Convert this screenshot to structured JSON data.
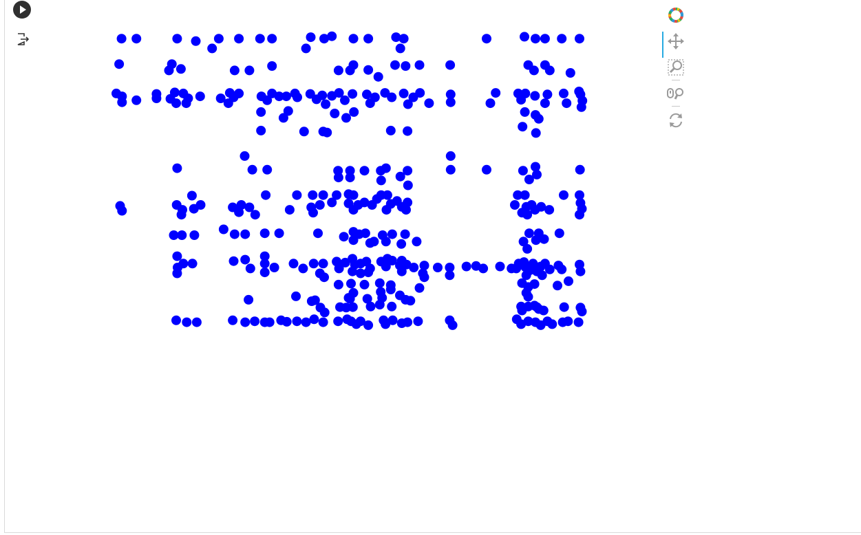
{
  "notebook": {
    "run_icon": "play-icon",
    "output_icon": "output-export-icon"
  },
  "toolbar": {
    "logo_icon": "bokeh-logo-icon",
    "tools": [
      {
        "name": "pan-tool",
        "icon": "move-arrows-icon",
        "active": true
      },
      {
        "name": "box-zoom-tool",
        "icon": "box-zoom-icon",
        "active": false
      },
      {
        "name": "wheel-zoom-tool",
        "icon": "wheel-zoom-icon",
        "active": false
      },
      {
        "name": "reset-tool",
        "icon": "reset-icon",
        "active": false
      }
    ]
  },
  "colors": {
    "marker": "#0000ff",
    "accent": "#26aae1",
    "run_button": "#303030"
  },
  "chart_data": {
    "type": "scatter",
    "title": "",
    "xlabel": "",
    "ylabel": "",
    "axes_visible": false,
    "grid": false,
    "marker": "circle",
    "color": "#0000ff",
    "xlim": [
      0,
      100
    ],
    "ylim": [
      0,
      100
    ],
    "points": [
      [
        2.1,
        98
      ],
      [
        5.2,
        98
      ],
      [
        13.7,
        98
      ],
      [
        17.6,
        97.5
      ],
      [
        22.4,
        98
      ],
      [
        21.0,
        96
      ],
      [
        26.6,
        98
      ],
      [
        31.0,
        98
      ],
      [
        33.5,
        98
      ],
      [
        41.6,
        98.3
      ],
      [
        44.4,
        98
      ],
      [
        40.6,
        96
      ],
      [
        46.0,
        98.5
      ],
      [
        50.5,
        98
      ],
      [
        53.6,
        98
      ],
      [
        59.4,
        98.3
      ],
      [
        61.0,
        98
      ],
      [
        60.3,
        96
      ],
      [
        78.3,
        98
      ],
      [
        86.2,
        98.4
      ],
      [
        88.5,
        98
      ],
      [
        90.5,
        98
      ],
      [
        94.0,
        98
      ],
      [
        97.7,
        98
      ],
      [
        1.6,
        92.8
      ],
      [
        12.6,
        92.8
      ],
      [
        12.0,
        91.5
      ],
      [
        14.5,
        91.8
      ],
      [
        25.7,
        91.5
      ],
      [
        28.8,
        91.5
      ],
      [
        33.5,
        92.4
      ],
      [
        47.4,
        91.5
      ],
      [
        49.8,
        91.5
      ],
      [
        50.5,
        92.6
      ],
      [
        53.6,
        91.6
      ],
      [
        55.7,
        90.2
      ],
      [
        59.2,
        92.6
      ],
      [
        61.4,
        92.4
      ],
      [
        64.3,
        92.6
      ],
      [
        70.7,
        92.6
      ],
      [
        87.0,
        92.6
      ],
      [
        88.2,
        91.5
      ],
      [
        90.5,
        92.6
      ],
      [
        91.5,
        91.5
      ],
      [
        95.8,
        91.0
      ],
      [
        1.0,
        86.8
      ],
      [
        2.2,
        86.2
      ],
      [
        2.2,
        85.0
      ],
      [
        5.2,
        85.4
      ],
      [
        9.4,
        86.7
      ],
      [
        9.4,
        85.8
      ],
      [
        12.3,
        85.7
      ],
      [
        13.2,
        87.0
      ],
      [
        13.5,
        84.8
      ],
      [
        15.0,
        86.8
      ],
      [
        16.0,
        85.8
      ],
      [
        15.6,
        84.8
      ],
      [
        18.5,
        86.2
      ],
      [
        22.8,
        85.8
      ],
      [
        24.7,
        86.9
      ],
      [
        26.6,
        86.8
      ],
      [
        25.5,
        86.0
      ],
      [
        24.4,
        84.8
      ],
      [
        31.3,
        86.2
      ],
      [
        32.5,
        85.4
      ],
      [
        33.5,
        86.8
      ],
      [
        35.0,
        86.2
      ],
      [
        36.5,
        86.2
      ],
      [
        38.3,
        86.8
      ],
      [
        38.8,
        86.0
      ],
      [
        41.5,
        86.7
      ],
      [
        42.8,
        85.6
      ],
      [
        44.0,
        86.4
      ],
      [
        46.0,
        86.3
      ],
      [
        44.7,
        84.6
      ],
      [
        47.5,
        86.9
      ],
      [
        48.7,
        85.4
      ],
      [
        50.3,
        86.7
      ],
      [
        53.3,
        86.6
      ],
      [
        55.0,
        86.0
      ],
      [
        54.0,
        84.8
      ],
      [
        57.1,
        86.9
      ],
      [
        58.5,
        86.0
      ],
      [
        61.0,
        86.8
      ],
      [
        63.0,
        86.0
      ],
      [
        61.9,
        84.6
      ],
      [
        64.4,
        86.9
      ],
      [
        66.3,
        84.8
      ],
      [
        70.8,
        86.6
      ],
      [
        70.8,
        85.0
      ],
      [
        80.2,
        86.9
      ],
      [
        79.1,
        84.8
      ],
      [
        84.9,
        86.8
      ],
      [
        86.4,
        86.8
      ],
      [
        85.5,
        85.5
      ],
      [
        88.4,
        86.3
      ],
      [
        91.0,
        86.6
      ],
      [
        90.5,
        84.8
      ],
      [
        94.4,
        86.8
      ],
      [
        95.0,
        84.8
      ],
      [
        97.9,
        86.6
      ],
      [
        98.3,
        85.3
      ],
      [
        98.1,
        84.0
      ],
      [
        97.6,
        87.2
      ],
      [
        31.2,
        83.0
      ],
      [
        35.9,
        81.8
      ],
      [
        36.9,
        83.2
      ],
      [
        46.6,
        82.7
      ],
      [
        49.0,
        81.8
      ],
      [
        50.6,
        83.0
      ],
      [
        86.3,
        83.0
      ],
      [
        88.5,
        82.4
      ],
      [
        89.2,
        81.6
      ],
      [
        85.8,
        80.0
      ],
      [
        31.2,
        79.2
      ],
      [
        40.2,
        79.0
      ],
      [
        44.2,
        79.0
      ],
      [
        45.0,
        78.8
      ],
      [
        58.3,
        79.2
      ],
      [
        61.8,
        79.1
      ],
      [
        88.6,
        78.7
      ],
      [
        13.7,
        71.5
      ],
      [
        27.8,
        74.0
      ],
      [
        29.4,
        71.2
      ],
      [
        32.5,
        71.2
      ],
      [
        47.3,
        71.0
      ],
      [
        49.8,
        71.0
      ],
      [
        47.4,
        69.6
      ],
      [
        49.8,
        69.6
      ],
      [
        52.8,
        71.0
      ],
      [
        56.2,
        71.0
      ],
      [
        57.3,
        71.5
      ],
      [
        56.3,
        69.0
      ],
      [
        60.3,
        69.8
      ],
      [
        61.8,
        71.0
      ],
      [
        61.9,
        68.0
      ],
      [
        70.8,
        74.0
      ],
      [
        70.8,
        71.2
      ],
      [
        78.3,
        71.2
      ],
      [
        85.9,
        71.0
      ],
      [
        88.5,
        71.8
      ],
      [
        87.2,
        69.2
      ],
      [
        88.8,
        70.2
      ],
      [
        97.8,
        71.2
      ],
      [
        1.8,
        63.8
      ],
      [
        2.2,
        62.8
      ],
      [
        13.6,
        64.0
      ],
      [
        16.8,
        65.9
      ],
      [
        18.6,
        64.0
      ],
      [
        17.2,
        63.2
      ],
      [
        14.8,
        63.0
      ],
      [
        14.6,
        62.0
      ],
      [
        25.3,
        63.5
      ],
      [
        27.1,
        64.0
      ],
      [
        28.8,
        63.5
      ],
      [
        30.0,
        62.0
      ],
      [
        32.2,
        66.0
      ],
      [
        26.6,
        62.5
      ],
      [
        37.2,
        63.0
      ],
      [
        38.7,
        66.0
      ],
      [
        42.0,
        66.0
      ],
      [
        41.7,
        63.5
      ],
      [
        42.1,
        62.4
      ],
      [
        44.2,
        66.0
      ],
      [
        43.5,
        64.0
      ],
      [
        46.0,
        64.5
      ],
      [
        47.0,
        66.0
      ],
      [
        49.5,
        66.2
      ],
      [
        50.5,
        66.0
      ],
      [
        49.5,
        64.3
      ],
      [
        50.5,
        63.0
      ],
      [
        51.5,
        64.0
      ],
      [
        52.8,
        64.5
      ],
      [
        54.4,
        64.0
      ],
      [
        55.4,
        65.2
      ],
      [
        56.3,
        66.0
      ],
      [
        57.6,
        66.0
      ],
      [
        57.4,
        63.0
      ],
      [
        58.3,
        64.2
      ],
      [
        59.6,
        64.8
      ],
      [
        60.6,
        63.6
      ],
      [
        61.5,
        63.0
      ],
      [
        61.8,
        64.5
      ],
      [
        84.8,
        66.0
      ],
      [
        86.3,
        66.0
      ],
      [
        84.2,
        64.0
      ],
      [
        85.7,
        62.4
      ],
      [
        86.6,
        63.6
      ],
      [
        87.7,
        64.0
      ],
      [
        88.4,
        63.0
      ],
      [
        86.8,
        62.0
      ],
      [
        89.7,
        63.6
      ],
      [
        91.4,
        63.0
      ],
      [
        94.4,
        66.0
      ],
      [
        97.7,
        66.0
      ],
      [
        97.9,
        64.4
      ],
      [
        98.2,
        63.2
      ],
      [
        97.7,
        62.0
      ],
      [
        13.0,
        57.8
      ],
      [
        14.7,
        57.8
      ],
      [
        17.3,
        57.8
      ],
      [
        23.4,
        59.0
      ],
      [
        25.7,
        58.0
      ],
      [
        27.9,
        58.0
      ],
      [
        32.0,
        58.2
      ],
      [
        35.0,
        58.2
      ],
      [
        43.1,
        58.2
      ],
      [
        48.5,
        57.5
      ],
      [
        50.5,
        58.5
      ],
      [
        51.7,
        58.0
      ],
      [
        54.8,
        56.5
      ],
      [
        56.6,
        57.8
      ],
      [
        58.6,
        58.0
      ],
      [
        61.3,
        58.0
      ],
      [
        63.7,
        56.5
      ],
      [
        57.3,
        56.5
      ],
      [
        54.0,
        56.2
      ],
      [
        50.5,
        56.8
      ],
      [
        53.0,
        58.2
      ],
      [
        60.5,
        56.0
      ],
      [
        88.6,
        56.8
      ],
      [
        90.3,
        57.0
      ],
      [
        87.2,
        58.2
      ],
      [
        89.2,
        58.2
      ],
      [
        93.5,
        58.2
      ],
      [
        86.8,
        55.0
      ],
      [
        86.0,
        56.5
      ],
      [
        13.7,
        53.5
      ],
      [
        15.0,
        52.0
      ],
      [
        13.8,
        51.2
      ],
      [
        16.9,
        52.0
      ],
      [
        13.7,
        50.0
      ],
      [
        25.5,
        52.5
      ],
      [
        29.0,
        51.0
      ],
      [
        27.9,
        52.8
      ],
      [
        32.0,
        53.5
      ],
      [
        32.0,
        52.0
      ],
      [
        34.0,
        51.2
      ],
      [
        32.0,
        50.2
      ],
      [
        38.0,
        52.0
      ],
      [
        40.0,
        51.0
      ],
      [
        42.2,
        52.0
      ],
      [
        44.2,
        52.0
      ],
      [
        43.5,
        50.0
      ],
      [
        44.4,
        49.2
      ],
      [
        47.0,
        52.4
      ],
      [
        47.5,
        51.0
      ],
      [
        48.8,
        52.2
      ],
      [
        50.3,
        53.0
      ],
      [
        50.8,
        51.8
      ],
      [
        52.0,
        52.0
      ],
      [
        50.3,
        50.4
      ],
      [
        52.0,
        50.0
      ],
      [
        53.2,
        52.4
      ],
      [
        54.0,
        51.0
      ],
      [
        53.6,
        50.2
      ],
      [
        56.3,
        52.4
      ],
      [
        57.3,
        51.4
      ],
      [
        60.6,
        50.4
      ],
      [
        57.6,
        53.0
      ],
      [
        58.6,
        52.6
      ],
      [
        60.6,
        52.6
      ],
      [
        60.2,
        51.6
      ],
      [
        61.6,
        51.8
      ],
      [
        63.1,
        51.2
      ],
      [
        65.3,
        51.6
      ],
      [
        65.0,
        50.0
      ],
      [
        65.3,
        49.2
      ],
      [
        68.1,
        51.2
      ],
      [
        70.6,
        51.2
      ],
      [
        70.6,
        49.6
      ],
      [
        74.1,
        51.4
      ],
      [
        76.1,
        51.5
      ],
      [
        77.6,
        51.0
      ],
      [
        81.1,
        51.4
      ],
      [
        83.5,
        51.0
      ],
      [
        85.0,
        52.0
      ],
      [
        84.5,
        51.0
      ],
      [
        86.1,
        52.3
      ],
      [
        86.4,
        51.3
      ],
      [
        87.3,
        50.6
      ],
      [
        86.6,
        49.6
      ],
      [
        88.8,
        50.4
      ],
      [
        88.0,
        52.0
      ],
      [
        89.6,
        51.4
      ],
      [
        90.5,
        52.0
      ],
      [
        91.5,
        50.8
      ],
      [
        89.9,
        49.6
      ],
      [
        93.3,
        51.6
      ],
      [
        94.0,
        50.8
      ],
      [
        97.7,
        51.8
      ],
      [
        97.9,
        50.4
      ],
      [
        95.4,
        48.4
      ],
      [
        93.1,
        47.5
      ],
      [
        47.4,
        47.7
      ],
      [
        50.0,
        47.9
      ],
      [
        52.8,
        47.7
      ],
      [
        56.0,
        48.0
      ],
      [
        58.3,
        47.6
      ],
      [
        64.3,
        47.0
      ],
      [
        85.7,
        48.0
      ],
      [
        87.0,
        47.2
      ],
      [
        88.3,
        47.8
      ],
      [
        86.6,
        46.0
      ],
      [
        87.0,
        45.2
      ],
      [
        38.5,
        45.3
      ],
      [
        41.8,
        44.3
      ],
      [
        42.5,
        44.5
      ],
      [
        28.6,
        44.6
      ],
      [
        49.8,
        44.8
      ],
      [
        58.3,
        46.7
      ],
      [
        60.2,
        45.5
      ],
      [
        61.4,
        44.6
      ],
      [
        62.4,
        44.4
      ],
      [
        56.2,
        46.2
      ],
      [
        50.5,
        46.0
      ],
      [
        49.5,
        45.0
      ],
      [
        53.4,
        44.8
      ],
      [
        56.5,
        45.0
      ],
      [
        43.6,
        43.0
      ],
      [
        44.5,
        42.0
      ],
      [
        47.7,
        43.1
      ],
      [
        49.0,
        43.0
      ],
      [
        50.4,
        43.1
      ],
      [
        54.1,
        43.2
      ],
      [
        56.0,
        43.6
      ],
      [
        58.5,
        43.2
      ],
      [
        85.7,
        42.4
      ],
      [
        85.5,
        43.2
      ],
      [
        87.0,
        43.2
      ],
      [
        88.3,
        43.4
      ],
      [
        89.2,
        42.7
      ],
      [
        88.8,
        43.1
      ],
      [
        90.2,
        42.4
      ],
      [
        94.5,
        43.1
      ],
      [
        97.9,
        43.0
      ],
      [
        98.2,
        42.2
      ],
      [
        13.5,
        40.4
      ],
      [
        15.7,
        40.0
      ],
      [
        17.8,
        40.0
      ],
      [
        25.3,
        40.4
      ],
      [
        27.9,
        40.0
      ],
      [
        29.9,
        40.2
      ],
      [
        32.0,
        40.0
      ],
      [
        33.0,
        40.0
      ],
      [
        35.4,
        40.4
      ],
      [
        36.6,
        40.1
      ],
      [
        38.7,
        40.2
      ],
      [
        40.6,
        40.0
      ],
      [
        42.3,
        40.6
      ],
      [
        44.2,
        40.0
      ],
      [
        47.3,
        40.2
      ],
      [
        49.2,
        40.6
      ],
      [
        50.0,
        40.2
      ],
      [
        52.0,
        40.2
      ],
      [
        51.1,
        39.6
      ],
      [
        53.6,
        39.4
      ],
      [
        56.8,
        40.4
      ],
      [
        57.2,
        39.6
      ],
      [
        58.7,
        40.4
      ],
      [
        60.6,
        39.8
      ],
      [
        61.8,
        40.0
      ],
      [
        64.0,
        40.2
      ],
      [
        70.6,
        40.4
      ],
      [
        71.2,
        39.4
      ],
      [
        84.6,
        40.6
      ],
      [
        85.5,
        39.6
      ],
      [
        87.0,
        40.2
      ],
      [
        88.5,
        40.0
      ],
      [
        89.6,
        39.4
      ],
      [
        91.0,
        40.2
      ],
      [
        92.0,
        39.6
      ],
      [
        94.2,
        40.0
      ],
      [
        95.3,
        40.2
      ],
      [
        97.5,
        40.0
      ]
    ]
  }
}
